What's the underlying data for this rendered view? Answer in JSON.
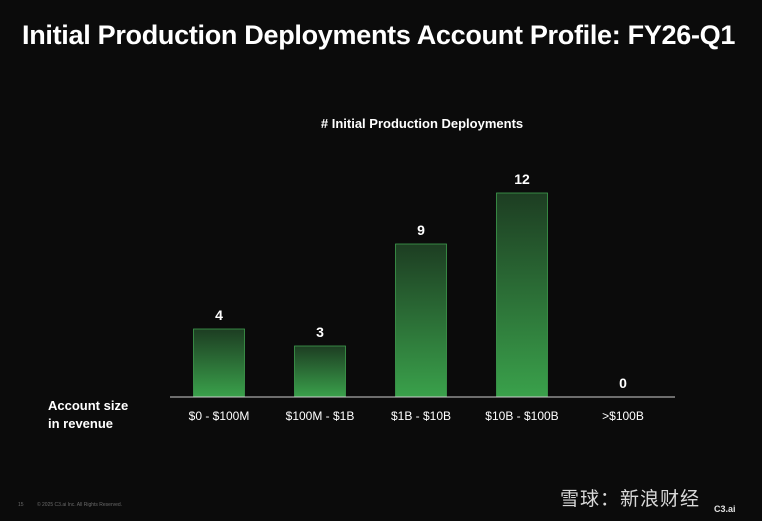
{
  "slide": {
    "title": "Initial Production Deployments Account Profile: FY26-Q1",
    "page_number": "15",
    "copyright": "© 2025 C3.ai Inc. All Rights Reserved.",
    "watermark": "雪球：新浪财经",
    "brand": "C3.ai"
  },
  "chart_data": {
    "type": "bar",
    "title": "# Initial Production Deployments",
    "xlabel": "Account size in revenue",
    "xlabel_lines": [
      "Account size",
      "in revenue"
    ],
    "ylabel": "",
    "categories": [
      "$0 - $100M",
      "$100M - $1B",
      "$1B - $10B",
      "$10B - $100B",
      ">$100B"
    ],
    "values": [
      4,
      3,
      9,
      12,
      0
    ],
    "ylim": [
      0,
      12
    ],
    "grid": false,
    "bar_color_top": "#1d3d22",
    "bar_color_bottom": "#3aa14b",
    "bar_border": "#3f9e4e",
    "axis_color": "#cfcfcf"
  }
}
